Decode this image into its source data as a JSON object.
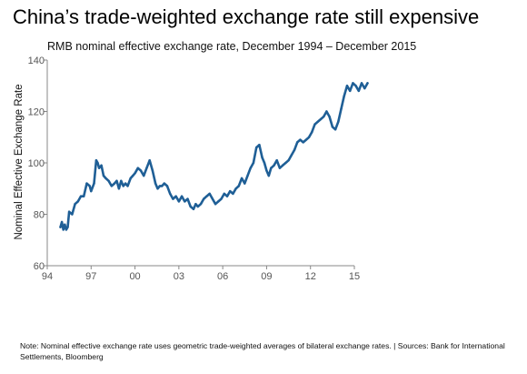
{
  "title": "China’s trade-weighted exchange rate still expensive",
  "subtitle": "RMB nominal effective exchange rate, December 1994 – December 2015",
  "note": "Note: Nominal effective exchange rate uses geometric trade-weighted averages of bilateral exchange rates. | Sources: Bank for International Settlements, Bloomberg",
  "colors": {
    "line": "#1f5f96",
    "axis": "#777777",
    "text": "#555555"
  },
  "chart_data": {
    "type": "line",
    "title": "RMB nominal effective exchange rate, December 1994 – December 2015",
    "xlabel": "",
    "ylabel": "Nominal Effective Exchange Rate",
    "xlim": [
      1994,
      2015
    ],
    "ylim": [
      60,
      140
    ],
    "yticks": [
      60,
      80,
      100,
      120,
      140
    ],
    "xticks": [
      {
        "value": 1994,
        "label": "94"
      },
      {
        "value": 1997,
        "label": "97"
      },
      {
        "value": 2000,
        "label": "00"
      },
      {
        "value": 2003,
        "label": "03"
      },
      {
        "value": 2006,
        "label": "06"
      },
      {
        "value": 2009,
        "label": "09"
      },
      {
        "value": 2012,
        "label": "12"
      },
      {
        "value": 2015,
        "label": "15"
      }
    ],
    "grid": false,
    "series": [
      {
        "x": [
          1994.9,
          1995.0,
          1995.1,
          1995.2,
          1995.3,
          1995.4,
          1995.5,
          1995.7,
          1995.9,
          1996.1,
          1996.3,
          1996.5,
          1996.7,
          1996.9,
          1997.0,
          1997.2,
          1997.35,
          1997.45,
          1997.55,
          1997.7,
          1997.85,
          1998.0,
          1998.2,
          1998.4,
          1998.6,
          1998.75,
          1998.9,
          1999.05,
          1999.2,
          1999.35,
          1999.5,
          1999.7,
          1999.85,
          2000.0,
          2000.2,
          2000.4,
          2000.6,
          2000.8,
          2001.0,
          2001.2,
          2001.4,
          2001.55,
          2001.7,
          2001.85,
          2002.0,
          2002.2,
          2002.4,
          2002.6,
          2002.8,
          2003.0,
          2003.2,
          2003.4,
          2003.6,
          2003.8,
          2004.0,
          2004.15,
          2004.3,
          2004.5,
          2004.7,
          2004.9,
          2005.1,
          2005.3,
          2005.5,
          2005.7,
          2005.9,
          2006.1,
          2006.3,
          2006.5,
          2006.7,
          2006.9,
          2007.1,
          2007.3,
          2007.5,
          2007.7,
          2007.9,
          2008.1,
          2008.3,
          2008.5,
          2008.7,
          2008.85,
          2009.0,
          2009.15,
          2009.3,
          2009.5,
          2009.7,
          2009.9,
          2010.1,
          2010.3,
          2010.5,
          2010.7,
          2010.9,
          2011.1,
          2011.3,
          2011.5,
          2011.7,
          2011.9,
          2012.1,
          2012.3,
          2012.5,
          2012.7,
          2012.9,
          2013.1,
          2013.3,
          2013.5,
          2013.7,
          2013.9,
          2014.1,
          2014.3,
          2014.5,
          2014.7,
          2014.9,
          2015.1,
          2015.3,
          2015.5,
          2015.7,
          2015.9
        ],
        "values": [
          75,
          77,
          74,
          76,
          74,
          75,
          81,
          80,
          84,
          85,
          87,
          87,
          92,
          91,
          89,
          92,
          101,
          100,
          98,
          99,
          95,
          94,
          93,
          91,
          92,
          93,
          90,
          93,
          91,
          92,
          91,
          94,
          95,
          96,
          98,
          97,
          95,
          98,
          101,
          97,
          92,
          90,
          91,
          91,
          92,
          91,
          88,
          86,
          87,
          85,
          87,
          85,
          86,
          83,
          82,
          84,
          83,
          84,
          86,
          87,
          88,
          86,
          84,
          85,
          86,
          88,
          87,
          89,
          88,
          90,
          91,
          94,
          92,
          95,
          98,
          100,
          106,
          107,
          102,
          100,
          97,
          95,
          98,
          99,
          101,
          98,
          99,
          100,
          101,
          103,
          105,
          108,
          109,
          108,
          109,
          110,
          112,
          115,
          116,
          117,
          118,
          120,
          118,
          114,
          113,
          116,
          121,
          126,
          130,
          128,
          131,
          130,
          128,
          131,
          129,
          131
        ]
      }
    ]
  }
}
